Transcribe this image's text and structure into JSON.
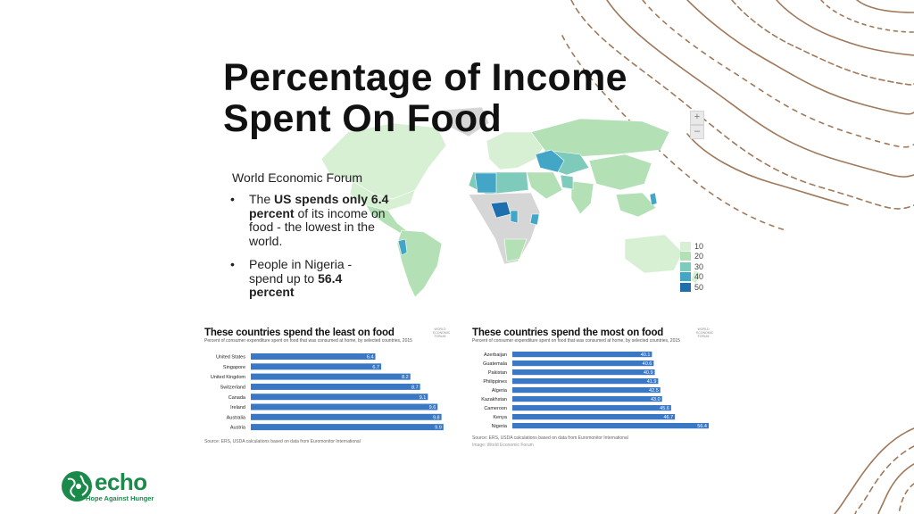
{
  "slide": {
    "title_line1": "Percentage of Income",
    "title_line2": "Spent On Food",
    "source": "World Economic Forum",
    "bullets": [
      {
        "before": "The ",
        "bold": "US spends only 6.4 percent",
        "after": " of its income on food - the lowest in the world."
      },
      {
        "before": "People in Nigeria - spend up to ",
        "bold": "56.4 percent",
        "after": ""
      }
    ]
  },
  "map": {
    "zoom_in": "+",
    "zoom_out": "–",
    "legend": [
      {
        "label": "10",
        "color": "#d7efd3"
      },
      {
        "label": "20",
        "color": "#b3e0b5"
      },
      {
        "label": "30",
        "color": "#7fcbbb"
      },
      {
        "label": "40",
        "color": "#43a6c6"
      },
      {
        "label": "50",
        "color": "#1f6fae"
      }
    ],
    "no_data_color": "#d6d6d6"
  },
  "logo": {
    "word": "echo",
    "tagline": "Hope Against Hunger",
    "color": "#1a8a4a"
  },
  "chart_data": [
    {
      "type": "bar",
      "orientation": "horizontal",
      "title": "These countries spend the least on food",
      "subtitle": "Percent of consumer expenditure spent on food that was consumed at home, by selected countries, 2015",
      "categories": [
        "United States",
        "Singapore",
        "United Kingdom",
        "Switzerland",
        "Canada",
        "Ireland",
        "Australia",
        "Austria"
      ],
      "values": [
        6.4,
        6.7,
        8.2,
        8.7,
        9.1,
        9.6,
        9.8,
        9.9
      ],
      "labels": [
        "6.4",
        "6.7",
        "8.2",
        "8.7",
        "9.1",
        "9.6",
        "9.8",
        "9.9"
      ],
      "xlim": [
        0,
        10
      ],
      "bar_color": "#3b78c4",
      "logo_text": "WORLD ECONOMIC FORUM",
      "footer": "Source: ERS, USDA calculations based on data from Euromonitor International",
      "credit": ""
    },
    {
      "type": "bar",
      "orientation": "horizontal",
      "title": "These countries spend the most on food",
      "subtitle": "Percent of consumer expenditure spent on food that was consumed at home, by selected countries, 2015",
      "categories": [
        "Azerbaijan",
        "Guatemala",
        "Pakistan",
        "Philippines",
        "Algeria",
        "Kazakhstan",
        "Cameroon",
        "Kenya",
        "Nigeria"
      ],
      "values": [
        40.1,
        40.6,
        40.9,
        41.9,
        42.5,
        43.0,
        45.6,
        46.7,
        56.4
      ],
      "labels": [
        "40.1",
        "40.6",
        "40.9",
        "41.9",
        "42.5",
        "43.0",
        "45.6",
        "46.7",
        "56.4"
      ],
      "xlim": [
        0,
        56.4
      ],
      "bar_color": "#3b78c4",
      "logo_text": "WORLD ECONOMIC FORUM",
      "footer": "Source: ERS, USDA calculations based on data from Euromonitor International",
      "credit": "Image: World Economic Forum"
    }
  ]
}
